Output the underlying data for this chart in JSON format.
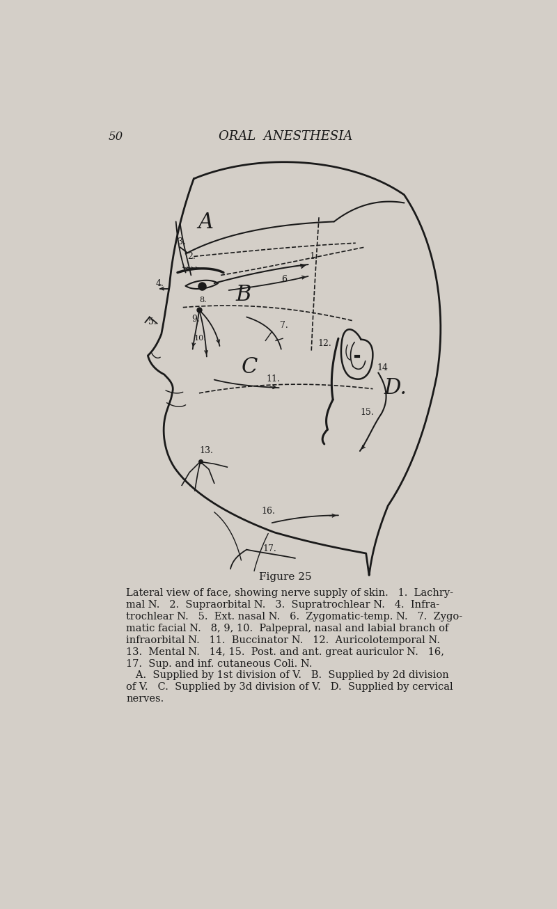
{
  "background_color": "#d4cfc8",
  "ink_color": "#1a1a1a",
  "page_number": "50",
  "header_text": "ORAL  ANESTHESIA",
  "figure_label": "Figure 25",
  "caption_line1": "Lateral view of face, showing nerve supply of skin.   1.  Lachry-",
  "caption_line2": "mal N.   2.  Supraorbital N.   3.  Supratrochlear N.   4.  Infra-",
  "caption_line3": "trochlear N.   5.  Ext. nasal N.   6.  Zygomatic-temp. N.   7.  Zygo-",
  "caption_line4": "matic facial N.   8, 9, 10.  Palpepral, nasal and labial branch of",
  "caption_line5": "infraorbital N.   11.  Buccinator N.   12.  Auricolotemporal N.",
  "caption_line6": "13.  Mental N.   14, 15.  Post. and ant. great auriculor N.   16,",
  "caption_line7": "17.  Sup. and inf. cutaneous Coli. N.",
  "caption_line8": "   A.  Supplied by 1st division of V.   B.  Supplied by 2d division",
  "caption_line9": "of V.   C.  Supplied by 3d division of V.   D.  Supplied by cervical",
  "caption_line10": "nerves."
}
